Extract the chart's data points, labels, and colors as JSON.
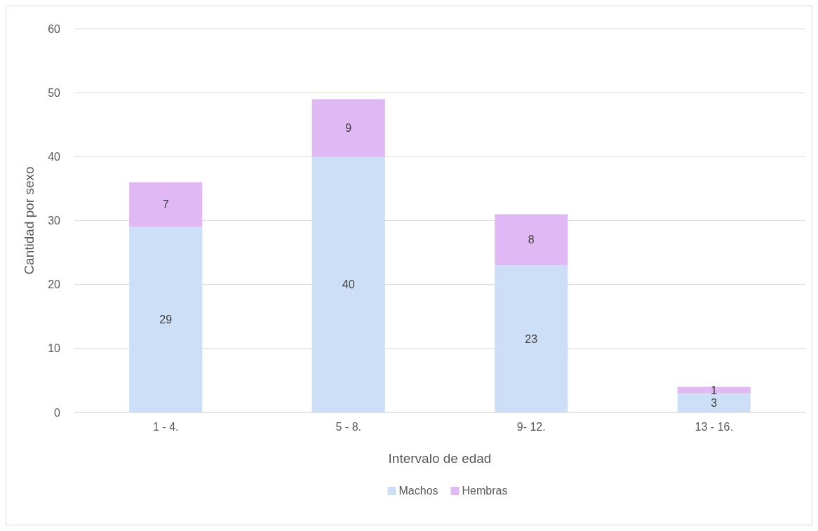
{
  "chart_data": {
    "type": "bar",
    "stacked": true,
    "xlabel": "Intervalo de edad",
    "ylabel": "Cantidad por sexo",
    "categories": [
      "1 - 4.",
      "5 - 8.",
      "9- 12.",
      "13 - 16."
    ],
    "series": [
      {
        "name": "Machos",
        "color": "#cddff7",
        "values": [
          29,
          40,
          23,
          3
        ]
      },
      {
        "name": "Hembras",
        "color": "#e0b9f4",
        "values": [
          7,
          9,
          8,
          1
        ]
      }
    ],
    "ylim": [
      0,
      60
    ],
    "yticks": [
      0,
      10,
      20,
      30,
      40,
      50,
      60
    ],
    "grid": "y",
    "legend": "bottom",
    "data_labels": true
  }
}
